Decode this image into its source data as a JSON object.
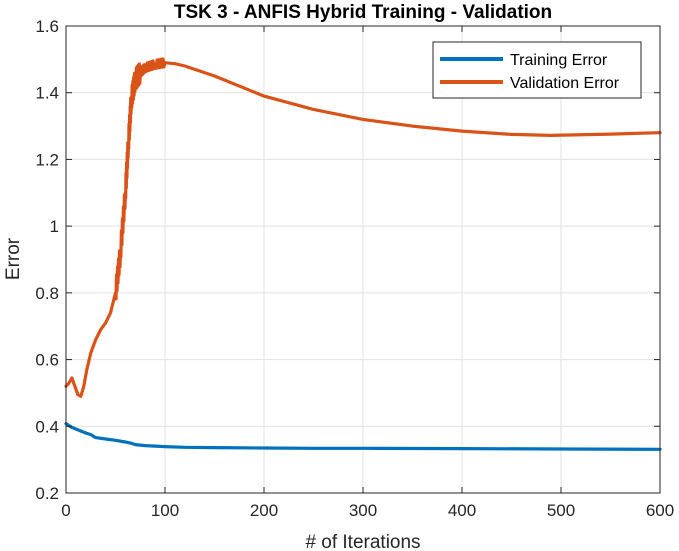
{
  "chart_data": {
    "type": "line",
    "title": "TSK 3 - ANFIS Hybrid Training - Validation",
    "xlabel": "# of Iterations",
    "ylabel": "Error",
    "xlim": [
      0,
      600
    ],
    "ylim": [
      0.2,
      1.6
    ],
    "xticks": [
      0,
      100,
      200,
      300,
      400,
      500,
      600
    ],
    "yticks": [
      0.2,
      0.4,
      0.6,
      0.8,
      1,
      1.2,
      1.4,
      1.6
    ],
    "xtick_labels": [
      "0",
      "100",
      "200",
      "300",
      "400",
      "500",
      "600"
    ],
    "ytick_labels": [
      "0.2",
      "0.4",
      "0.6",
      "0.8",
      "1",
      "1.2",
      "1.4",
      "1.6"
    ],
    "grid": true,
    "legend_position": "top-right",
    "series": [
      {
        "name": "Training Error",
        "color": "#0072BD",
        "x": [
          0,
          5,
          10,
          15,
          20,
          25,
          30,
          40,
          50,
          60,
          65,
          70,
          80,
          100,
          120,
          150,
          200,
          250,
          300,
          400,
          500,
          600
        ],
        "y": [
          0.408,
          0.398,
          0.392,
          0.386,
          0.38,
          0.375,
          0.366,
          0.362,
          0.358,
          0.353,
          0.35,
          0.345,
          0.342,
          0.339,
          0.337,
          0.336,
          0.335,
          0.334,
          0.334,
          0.333,
          0.332,
          0.331
        ]
      },
      {
        "name": "Validation Error",
        "color": "#D95319",
        "x": [
          0,
          3,
          6,
          9,
          12,
          15,
          18,
          21,
          25,
          30,
          35,
          40,
          45,
          50,
          55,
          60,
          63,
          66,
          70,
          75,
          80,
          90,
          100,
          110,
          120,
          150,
          200,
          250,
          300,
          350,
          400,
          450,
          490,
          550,
          600
        ],
        "y": [
          0.52,
          0.53,
          0.545,
          0.52,
          0.495,
          0.49,
          0.52,
          0.57,
          0.62,
          0.66,
          0.69,
          0.71,
          0.74,
          0.8,
          0.92,
          1.1,
          1.25,
          1.38,
          1.44,
          1.46,
          1.475,
          1.485,
          1.49,
          1.487,
          1.48,
          1.45,
          1.39,
          1.35,
          1.32,
          1.3,
          1.285,
          1.275,
          1.272,
          1.276,
          1.28
        ]
      }
    ]
  }
}
